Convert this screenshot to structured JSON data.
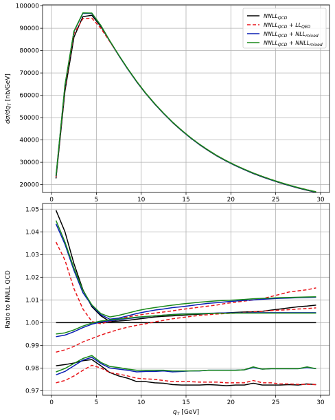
{
  "chart_data": [
    {
      "type": "line",
      "xlabel": "",
      "ylabel": "dσ/dq_T [nb/GeV]",
      "xlim": [
        -1,
        31
      ],
      "ylim": [
        16500,
        100500
      ],
      "xticks": [
        0,
        5,
        10,
        15,
        20,
        25,
        30
      ],
      "yticks": [
        20000,
        30000,
        40000,
        50000,
        60000,
        70000,
        80000,
        90000,
        100000
      ],
      "grid": true,
      "legend": "top-right",
      "x": [
        0.5,
        1.5,
        2.5,
        3.5,
        4.5,
        5.5,
        6.5,
        7.5,
        8.5,
        9.5,
        10.5,
        11.5,
        12.5,
        13.5,
        14.5,
        15.5,
        16.5,
        17.5,
        18.5,
        19.5,
        20.5,
        21.5,
        22.5,
        23.5,
        24.5,
        25.5,
        26.5,
        27.5,
        28.5,
        29.5
      ],
      "series": [
        {
          "name": "NNLL_QCD",
          "legend_main": "NNLL",
          "legend_sub": "QCD",
          "legend_extra": "",
          "legend_extra_sub": "",
          "color": "#000000",
          "dash": "",
          "values": [
            22800,
            62000,
            86000,
            95200,
            95800,
            90800,
            84200,
            77800,
            71700,
            66000,
            60800,
            56100,
            51800,
            47800,
            44200,
            40900,
            37900,
            35200,
            32700,
            30500,
            28500,
            26700,
            25000,
            23500,
            22100,
            20800,
            19600,
            18500,
            17500,
            16600
          ]
        },
        {
          "name": "NNLL_QCD + LL_QED",
          "legend_main": "NNLL",
          "legend_sub": "QCD",
          "legend_extra": " + LL",
          "legend_extra_sub": "QED",
          "color": "#e8161b",
          "dash": "5,3",
          "values": [
            23500,
            63500,
            87600,
            94300,
            94500,
            90000,
            84000,
            77900,
            71900,
            66200,
            61000,
            56300,
            52000,
            48000,
            44400,
            41100,
            38100,
            35400,
            32900,
            30700,
            28700,
            26900,
            25200,
            23700,
            22300,
            21000,
            19800,
            18700,
            17700,
            16800
          ]
        },
        {
          "name": "NNLL_QCD + NLL_mixed",
          "legend_main": "NNLL",
          "legend_sub": "QCD",
          "legend_extra": " + NLL",
          "legend_extra_sub": "mixed",
          "color": "#0a1eb4",
          "dash": "",
          "values": [
            23900,
            64500,
            88500,
            96700,
            96600,
            91200,
            84300,
            77900,
            71800,
            66100,
            60900,
            56200,
            51900,
            47900,
            44300,
            41000,
            38000,
            35300,
            32800,
            30600,
            28600,
            26800,
            25100,
            23600,
            22200,
            20900,
            19700,
            18600,
            17600,
            16700
          ]
        },
        {
          "name": "NNLL_QCD + NNLL_mixed",
          "legend_main": "NNLL",
          "legend_sub": "QCD",
          "legend_extra": " + NNLL",
          "legend_extra_sub": "mixed",
          "color": "#1a8a1a",
          "dash": "",
          "values": [
            24000,
            64700,
            88700,
            96900,
            96800,
            91300,
            84400,
            78000,
            71900,
            66200,
            61000,
            56300,
            52000,
            48000,
            44400,
            41100,
            38100,
            35400,
            32900,
            30700,
            28700,
            26900,
            25200,
            23700,
            22300,
            21000,
            19800,
            18700,
            17700,
            16800
          ]
        }
      ]
    },
    {
      "type": "line",
      "xlabel": "q_T [GeV]",
      "xlabel_main": "q",
      "xlabel_sub": "T",
      "xlabel_rest": " [GeV]",
      "ylabel": "Ratio to NNLL QCD",
      "xlim": [
        -1,
        31
      ],
      "ylim": [
        0.968,
        1.0525
      ],
      "xticks": [
        0,
        5,
        10,
        15,
        20,
        25,
        30
      ],
      "yticks": [
        0.97,
        0.98,
        0.99,
        1.0,
        1.01,
        1.02,
        1.03,
        1.04,
        1.05
      ],
      "ytick_labels": [
        "0.97",
        "0.98",
        "0.99",
        "1.00",
        "1.01",
        "1.02",
        "1.03",
        "1.04",
        "1.05"
      ],
      "grid": true,
      "x": [
        0.5,
        1.5,
        2.5,
        3.5,
        4.5,
        5.5,
        6.5,
        7.5,
        8.5,
        9.5,
        10.5,
        11.5,
        12.5,
        13.5,
        14.5,
        15.5,
        16.5,
        17.5,
        18.5,
        19.5,
        20.5,
        21.5,
        22.5,
        23.5,
        24.5,
        25.5,
        26.5,
        27.5,
        28.5,
        29.5
      ],
      "series": [
        {
          "name": "NNLL_QCD central",
          "color": "#000000",
          "dash": "",
          "values": [
            1.0,
            1.0,
            1.0,
            1.0,
            1.0,
            1.0,
            1.0,
            1.0,
            1.0,
            1.0,
            1.0,
            1.0,
            1.0,
            1.0,
            1.0,
            1.0,
            1.0,
            1.0,
            1.0,
            1.0,
            1.0,
            1.0,
            1.0,
            1.0,
            1.0,
            1.0,
            1.0,
            1.0,
            1.0,
            1.0
          ]
        },
        {
          "name": "NNLL_QCD upper",
          "color": "#000000",
          "dash": "",
          "values": [
            1.0495,
            1.04,
            1.026,
            1.0145,
            1.007,
            1.003,
            1.0005,
            1.0007,
            1.001,
            1.0015,
            1.002,
            1.0025,
            1.0028,
            1.003,
            1.0032,
            1.0035,
            1.0037,
            1.004,
            1.0042,
            1.0043,
            1.0045,
            1.0047,
            1.0048,
            1.005,
            1.0055,
            1.006,
            1.0065,
            1.007,
            1.0073,
            1.0077
          ]
        },
        {
          "name": "NNLL_QCD lower",
          "color": "#000000",
          "dash": "",
          "values": [
            0.981,
            0.9815,
            0.9822,
            0.9832,
            0.9837,
            0.981,
            0.978,
            0.9765,
            0.9755,
            0.974,
            0.974,
            0.9735,
            0.9733,
            0.9727,
            0.9725,
            0.9725,
            0.9725,
            0.9727,
            0.9725,
            0.9722,
            0.9725,
            0.9725,
            0.9733,
            0.9725,
            0.9725,
            0.9725,
            0.9727,
            0.9725,
            0.973,
            0.9727
          ]
        },
        {
          "name": "NNLL_QCD + LL_QED central",
          "color": "#e8161b",
          "dash": "5,3",
          "values": [
            0.987,
            0.988,
            0.9895,
            0.9915,
            0.993,
            0.9945,
            0.9958,
            0.997,
            0.998,
            0.9988,
            0.9995,
            1.0003,
            1.001,
            1.0017,
            1.0022,
            1.0027,
            1.0032,
            1.0035,
            1.0038,
            1.004,
            1.0042,
            1.0045,
            1.0047,
            1.005,
            1.0053,
            1.0055,
            1.0057,
            1.006,
            1.0062,
            1.0065
          ]
        },
        {
          "name": "NNLL_QCD + LL_QED upper",
          "color": "#e8161b",
          "dash": "5,3",
          "values": [
            1.0355,
            1.0275,
            1.015,
            1.006,
            1.0005,
            0.9995,
            1.0005,
            1.0015,
            1.0025,
            1.0032,
            1.0038,
            1.0042,
            1.0047,
            1.0052,
            1.0058,
            1.0063,
            1.0068,
            1.0073,
            1.0078,
            1.0085,
            1.009,
            1.0095,
            1.01,
            1.0105,
            1.0115,
            1.0125,
            1.0135,
            1.014,
            1.0145,
            1.0153
          ]
        },
        {
          "name": "NNLL_QCD + LL_QED lower",
          "color": "#e8161b",
          "dash": "5,3",
          "values": [
            0.9735,
            0.9745,
            0.9765,
            0.979,
            0.9812,
            0.98,
            0.978,
            0.9773,
            0.9765,
            0.9755,
            0.9752,
            0.975,
            0.9745,
            0.974,
            0.974,
            0.974,
            0.9738,
            0.9738,
            0.9738,
            0.9735,
            0.9735,
            0.9735,
            0.9745,
            0.9735,
            0.9735,
            0.973,
            0.973,
            0.9728,
            0.9728,
            0.9727
          ]
        },
        {
          "name": "NNLL_QCD + NLL_mixed central",
          "color": "#0a1eb4",
          "dash": "",
          "values": [
            0.9938,
            0.9945,
            0.996,
            0.9978,
            0.9993,
            1.0003,
            1.0008,
            1.0013,
            1.0018,
            1.0022,
            1.0026,
            1.003,
            1.0033,
            1.0036,
            1.0038,
            1.0039,
            1.004,
            1.0041,
            1.0042,
            1.0043,
            1.0043,
            1.0043,
            1.0044,
            1.0044,
            1.0044,
            1.0044,
            1.0044,
            1.0044,
            1.0044,
            1.0044
          ]
        },
        {
          "name": "NNLL_QCD + NLL_mixed upper",
          "color": "#0a1eb4",
          "dash": "",
          "values": [
            1.0435,
            1.0345,
            1.023,
            1.0132,
            1.0075,
            1.0035,
            1.0015,
            1.002,
            1.003,
            1.004,
            1.0048,
            1.0055,
            1.006,
            1.0066,
            1.007,
            1.0075,
            1.008,
            1.0085,
            1.0088,
            1.0092,
            1.0095,
            1.0098,
            1.01,
            1.0103,
            1.0105,
            1.0107,
            1.0108,
            1.011,
            1.0111,
            1.0112
          ]
        },
        {
          "name": "NNLL_QCD + NLL_mixed lower",
          "color": "#0a1eb4",
          "dash": "",
          "values": [
            0.977,
            0.9785,
            0.981,
            0.9835,
            0.9847,
            0.982,
            0.98,
            0.9795,
            0.979,
            0.9783,
            0.9785,
            0.9785,
            0.9787,
            0.9783,
            0.9785,
            0.9787,
            0.9787,
            0.979,
            0.979,
            0.979,
            0.979,
            0.9792,
            0.9802,
            0.9795,
            0.9797,
            0.9797,
            0.9797,
            0.9797,
            0.9802,
            0.9797
          ]
        },
        {
          "name": "NNLL_QCD + NNLL_mixed central",
          "color": "#1a8a1a",
          "dash": "",
          "values": [
            0.995,
            0.9955,
            0.9968,
            0.9985,
            0.9998,
            1.0007,
            1.0012,
            1.0016,
            1.002,
            1.0024,
            1.0027,
            1.003,
            1.0033,
            1.0035,
            1.0037,
            1.0038,
            1.0039,
            1.004,
            1.0041,
            1.0041,
            1.0042,
            1.0042,
            1.0042,
            1.0042,
            1.0042,
            1.0042,
            1.0042,
            1.0042,
            1.0042,
            1.0042
          ]
        },
        {
          "name": "NNLL_QCD + NNLL_mixed upper",
          "color": "#1a8a1a",
          "dash": "",
          "values": [
            1.045,
            1.0355,
            1.024,
            1.0142,
            1.0078,
            1.004,
            1.0025,
            1.0032,
            1.0042,
            1.0052,
            1.006,
            1.0066,
            1.0072,
            1.0077,
            1.0082,
            1.0086,
            1.009,
            1.0093,
            1.0096,
            1.0098,
            1.01,
            1.0102,
            1.0105,
            1.0107,
            1.0108,
            1.011,
            1.0111,
            1.0112,
            1.0113,
            1.0114
          ]
        },
        {
          "name": "NNLL_QCD + NNLL_mixed lower",
          "color": "#1a8a1a",
          "dash": "",
          "values": [
            0.9783,
            0.9798,
            0.982,
            0.9842,
            0.9855,
            0.9825,
            0.9807,
            0.9802,
            0.9795,
            0.979,
            0.979,
            0.979,
            0.979,
            0.9787,
            0.9787,
            0.9787,
            0.9788,
            0.979,
            0.979,
            0.979,
            0.979,
            0.9792,
            0.9805,
            0.9795,
            0.9797,
            0.9797,
            0.9797,
            0.9797,
            0.9805,
            0.9797
          ]
        }
      ]
    }
  ]
}
